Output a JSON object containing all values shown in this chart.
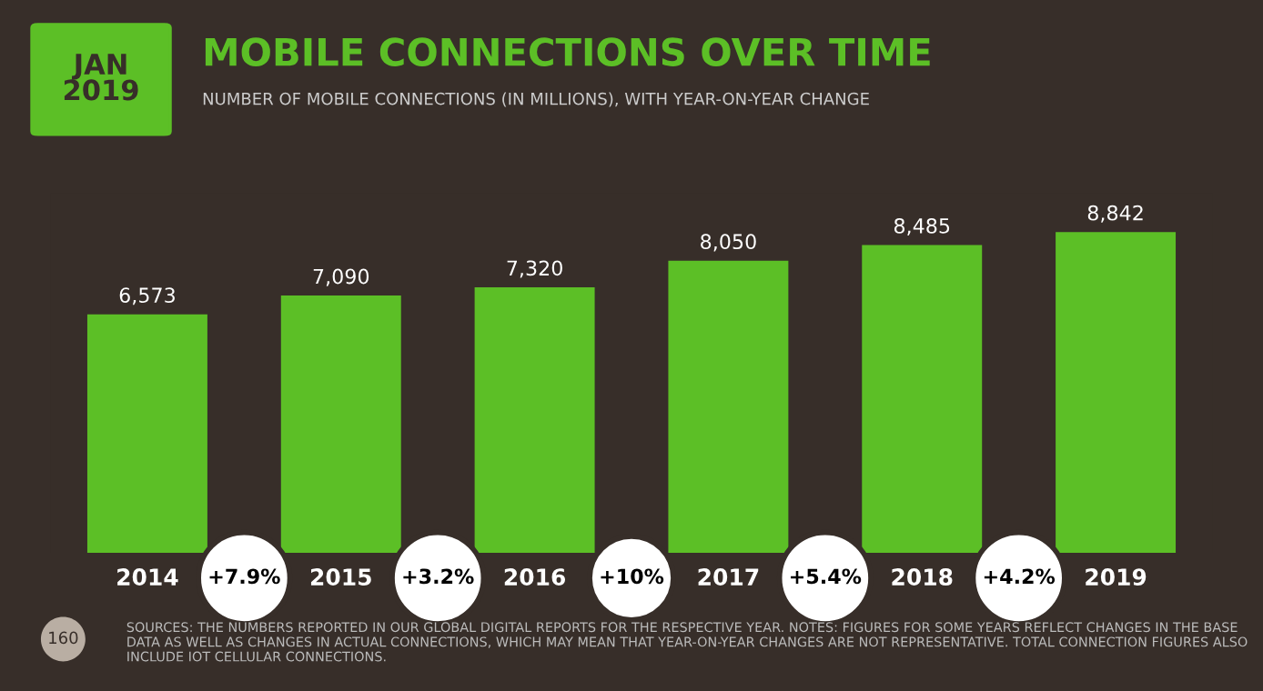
{
  "chart_data": {
    "type": "bar",
    "title": "MOBILE CONNECTIONS OVER TIME",
    "subtitle": "NUMBER OF MOBILE CONNECTIONS (IN MILLIONS), WITH YEAR-ON-YEAR CHANGE",
    "categories": [
      "2014",
      "2015",
      "2016",
      "2017",
      "2018",
      "2019"
    ],
    "values": [
      6573,
      7090,
      7320,
      8050,
      8485,
      8842
    ],
    "value_labels": [
      "6,573",
      "7,090",
      "7,320",
      "8,050",
      "8,485",
      "8,842"
    ],
    "color": "#5cbf26",
    "annotations": [
      "JAN\n2019",
      "+7.9%",
      "+3.2%",
      "+10%",
      "+5.4%",
      "+4.2%",
      "SOURCES: THE NUMBERS REPORTED IN OUR GLOBAL DIGITAL REPORTS FOR THE RESPECTIVE YEAR. NOTES: FIGURES FOR SOME YEARS REFLECT CHANGES IN THE BASE DATA AS WELL AS CHANGES IN ACTUAL CONNECTIONS, WHICH MAY MEAN THAT YEAR-ON-YEAR CHANGES ARE NOT REPRESENTATIVE. TOTAL CONNECTION FIGURES ALSO INCLUDE IOT CELLULAR CONNECTIONS.",
      "160"
    ],
    "grid": false,
    "legend": false,
    "tick_labels": "x"
  }
}
